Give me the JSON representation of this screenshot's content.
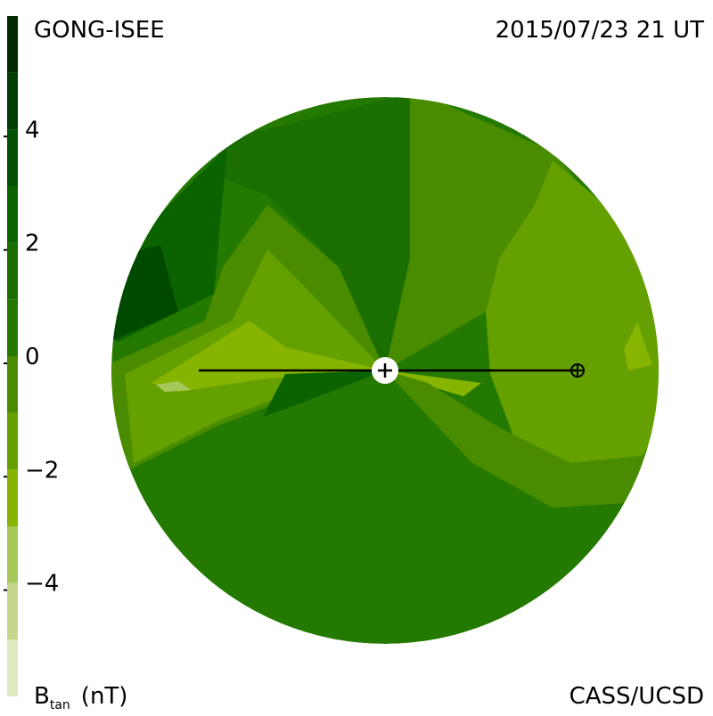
{
  "chart_data": {
    "type": "contour",
    "title": "GONG-ISEE",
    "subtitle": "2015/07/23 21 UT",
    "credit": "CASS/UCSD",
    "colorbar_label": {
      "symbol": "B",
      "subscript": "tan",
      "unit": "(nT)"
    },
    "clim": [
      -6,
      6
    ],
    "levels": [
      -6,
      -5,
      -4,
      -3,
      -2,
      -1,
      0,
      1,
      2,
      3,
      4,
      5,
      6
    ],
    "colors": [
      "#dfe9c0",
      "#c4d78a",
      "#a6c85a",
      "#86b400",
      "#64a000",
      "#4a8c00",
      "#247a00",
      "#1a6f00",
      "#0b6300",
      "#005200",
      "#003e00",
      "#002a00"
    ],
    "cticks": [
      4,
      2,
      0,
      {
        "value": -2,
        "label": "−2"
      },
      {
        "value": -4,
        "label": "−4"
      }
    ]
  }
}
